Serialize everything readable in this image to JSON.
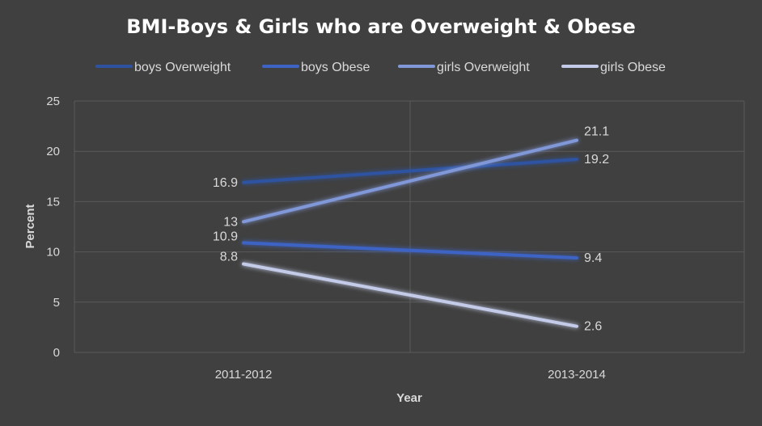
{
  "chart_data": {
    "type": "line",
    "title": "BMI-Boys & Girls who are Overweight & Obese",
    "xlabel": "Year",
    "ylabel": "Percent",
    "categories": [
      "2011-2012",
      "2013-2014"
    ],
    "ylim": [
      0,
      25
    ],
    "yticks": [
      "0",
      "5",
      "10",
      "15",
      "20",
      "25"
    ],
    "grid": true,
    "legend_position": "top",
    "series": [
      {
        "name": "boys Overweight",
        "values": [
          16.9,
          19.2
        ],
        "labels": [
          "16.9",
          "19.2"
        ],
        "color": "#2f52a0"
      },
      {
        "name": "boys Obese",
        "values": [
          10.9,
          9.4
        ],
        "labels": [
          "10.9",
          "9.4"
        ],
        "color": "#3d63c4"
      },
      {
        "name": "girls Overweight",
        "values": [
          13,
          21.1
        ],
        "labels": [
          "13",
          "21.1"
        ],
        "color": "#8097d8"
      },
      {
        "name": "girls Obese",
        "values": [
          8.8,
          2.6
        ],
        "labels": [
          "8.8",
          "2.6"
        ],
        "color": "#c3cbe8"
      }
    ]
  }
}
